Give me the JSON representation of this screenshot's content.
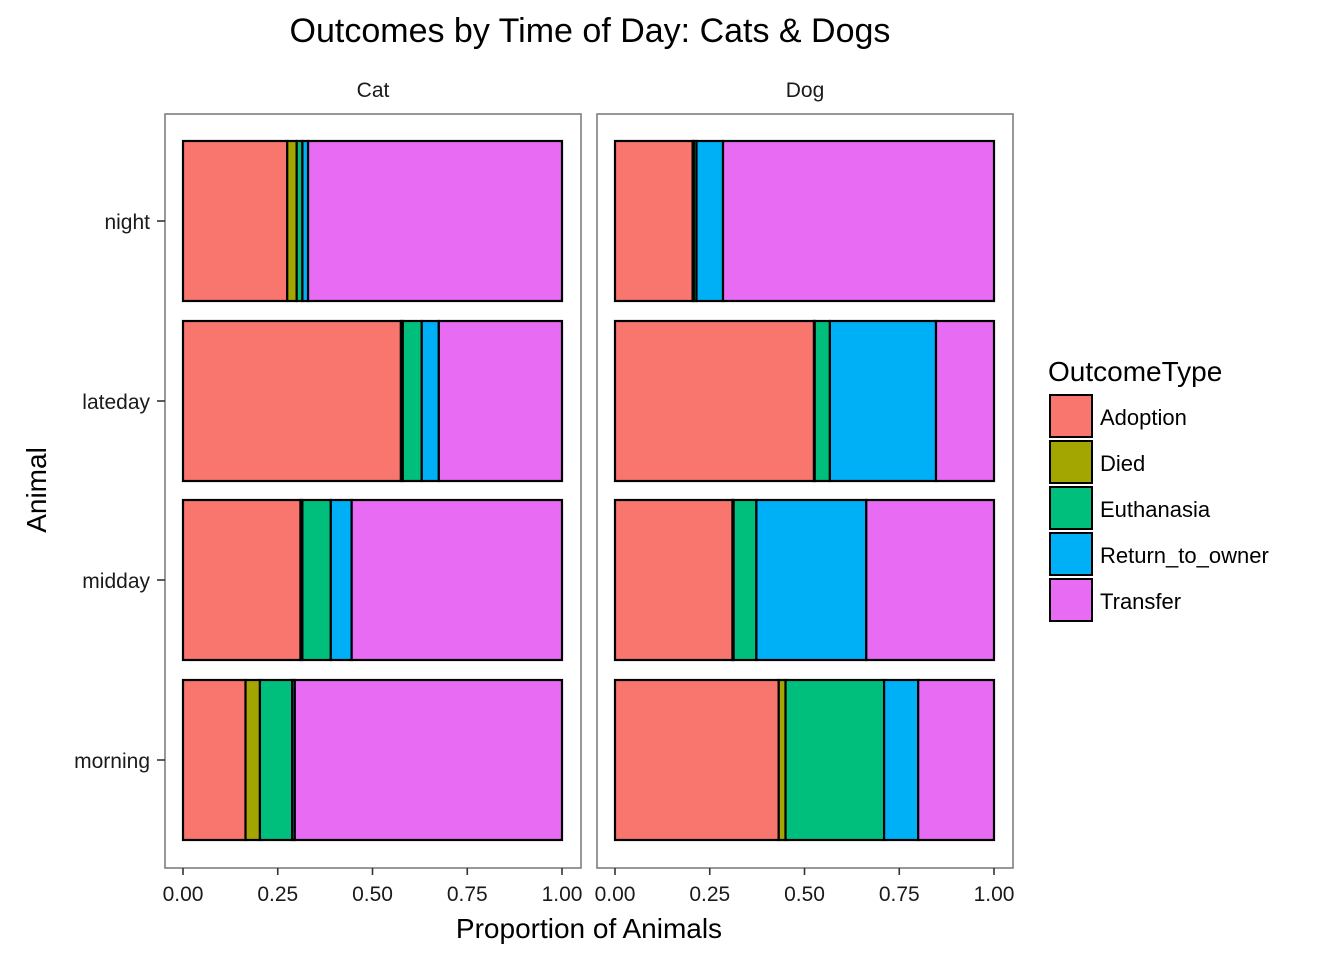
{
  "title": "Outcomes by Time of Day: Cats & Dogs",
  "chart_data": {
    "type": "bar",
    "orientation": "horizontal",
    "stacked": "proportion",
    "title": "Outcomes by Time of Day: Cats & Dogs",
    "xlabel": "Proportion of Animals",
    "ylabel": "Animal",
    "xlim": [
      0,
      1
    ],
    "xticks": [
      "0.00",
      "0.25",
      "0.50",
      "0.75",
      "1.00"
    ],
    "categories": [
      "night",
      "lateday",
      "midday",
      "morning"
    ],
    "legend": {
      "title": "OutcomeType",
      "position": "right",
      "entries": [
        {
          "name": "Adoption",
          "color": "#F8766D"
        },
        {
          "name": "Died",
          "color": "#A3A500"
        },
        {
          "name": "Euthanasia",
          "color": "#00BF7D"
        },
        {
          "name": "Return_to_owner",
          "color": "#00B0F6"
        },
        {
          "name": "Transfer",
          "color": "#E76BF3"
        }
      ]
    },
    "panels": [
      {
        "name": "Cat",
        "series": [
          {
            "name": "Adoption",
            "values": [
              0.275,
              0.575,
              0.31,
              0.165
            ]
          },
          {
            "name": "Died",
            "values": [
              0.025,
              0.005,
              0.005,
              0.038
            ]
          },
          {
            "name": "Euthanasia",
            "values": [
              0.015,
              0.05,
              0.075,
              0.085
            ]
          },
          {
            "name": "Return_to_owner",
            "values": [
              0.015,
              0.045,
              0.055,
              0.007
            ]
          },
          {
            "name": "Transfer",
            "values": [
              0.67,
              0.325,
              0.555,
              0.705
            ]
          }
        ]
      },
      {
        "name": "Dog",
        "series": [
          {
            "name": "Adoption",
            "values": [
              0.205,
              0.525,
              0.31,
              0.432
            ]
          },
          {
            "name": "Died",
            "values": [
              0.003,
              0.002,
              0.003,
              0.018
            ]
          },
          {
            "name": "Euthanasia",
            "values": [
              0.007,
              0.04,
              0.06,
              0.26
            ]
          },
          {
            "name": "Return_to_owner",
            "values": [
              0.07,
              0.28,
              0.29,
              0.09
            ]
          },
          {
            "name": "Transfer",
            "values": [
              0.715,
              0.153,
              0.337,
              0.2
            ]
          }
        ]
      }
    ]
  }
}
